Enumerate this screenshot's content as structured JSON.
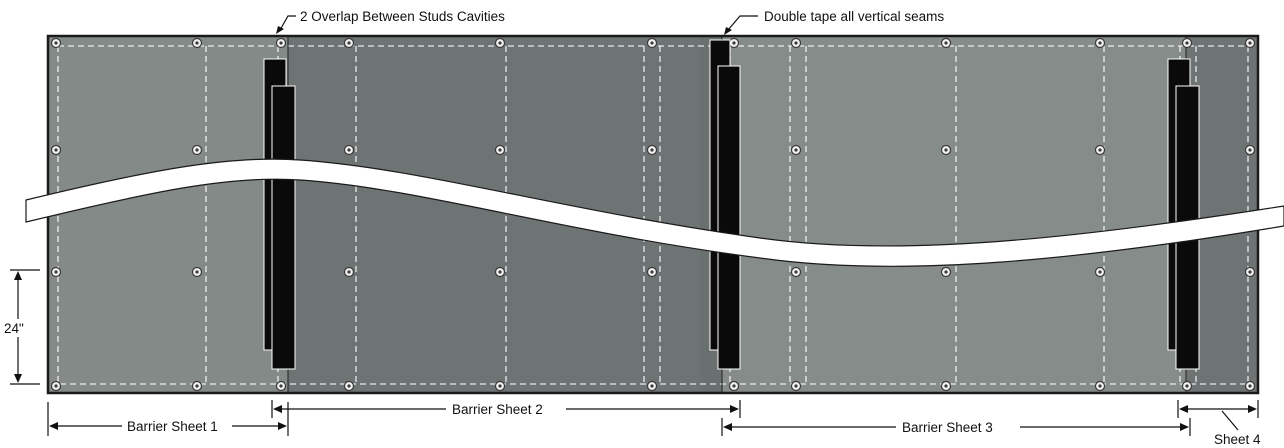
{
  "callouts": {
    "overlap": "2 Overlap Between Studs Cavities",
    "tape": "Double tape all vertical seams"
  },
  "dimension": {
    "spacing": "24\""
  },
  "sheets": [
    {
      "label": "Barrier Sheet 1",
      "color": "#838a88"
    },
    {
      "label": "Barrier Sheet 2",
      "color": "#6e7473"
    },
    {
      "label": "Barrier Sheet 3",
      "color": "#858c8a"
    },
    {
      "label": "Sheet 4",
      "color": "#6e7473"
    }
  ],
  "colors": {
    "tape": "#0a0a0a",
    "outline": "#1a1a1a"
  }
}
